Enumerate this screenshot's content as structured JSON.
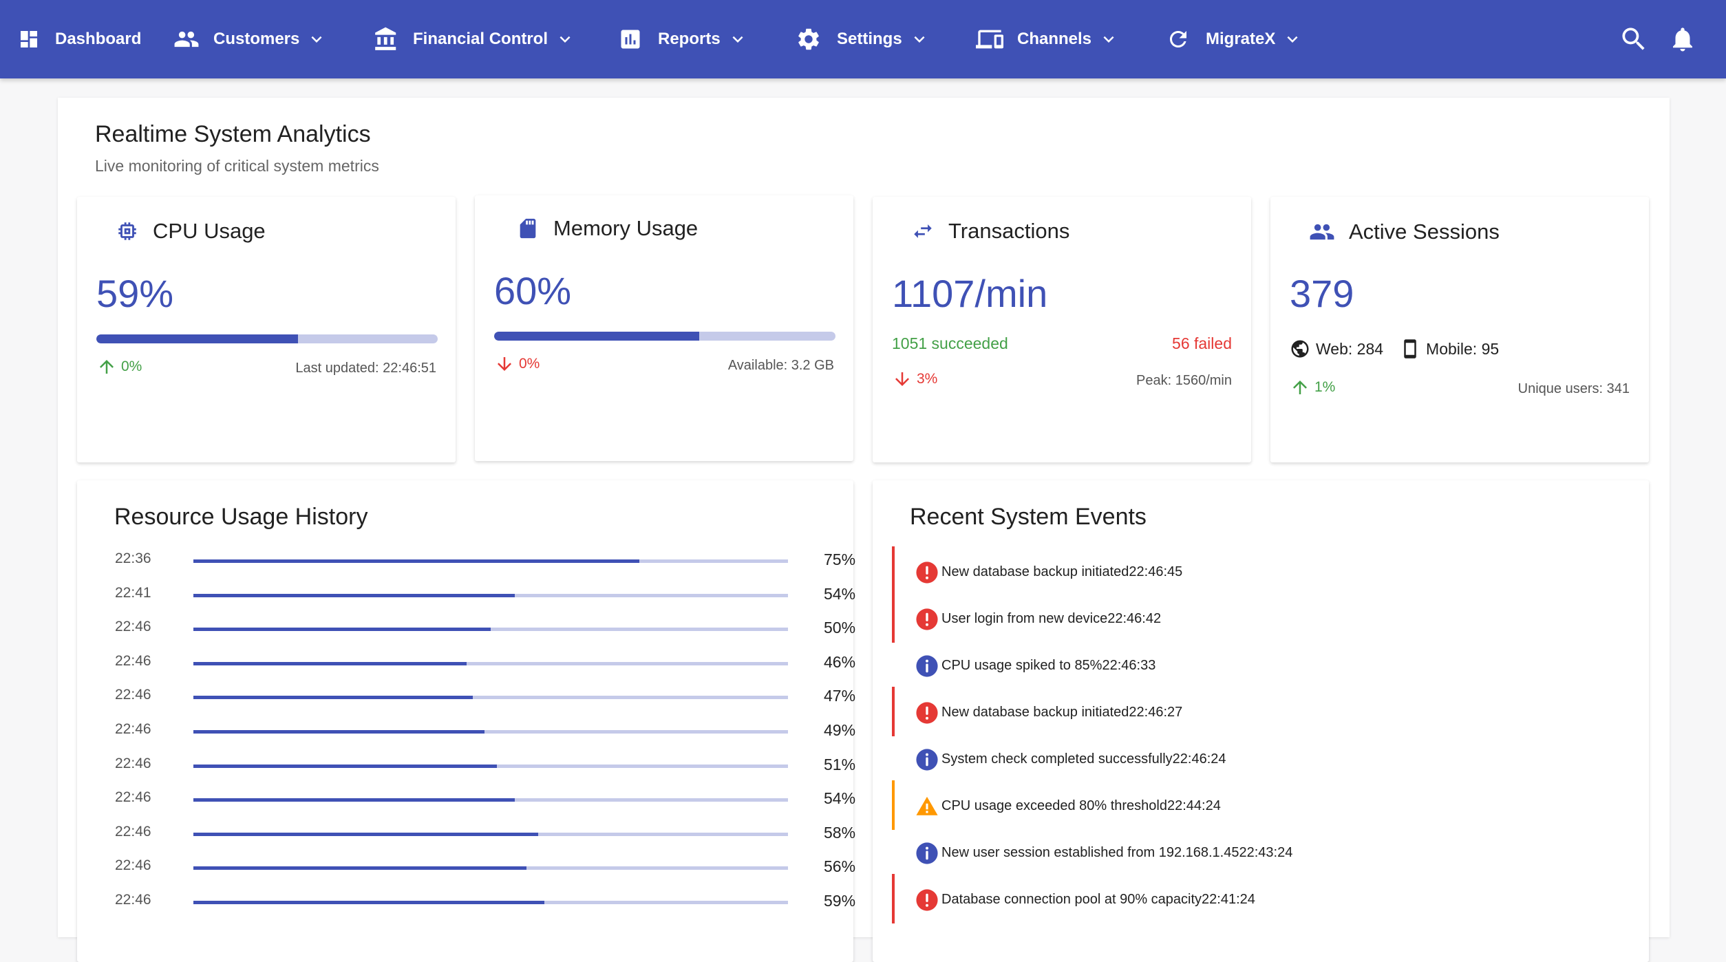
{
  "nav": {
    "dashboard": "Dashboard",
    "customers": "Customers",
    "financial": "Financial Control",
    "reports": "Reports",
    "settings": "Settings",
    "channels": "Channels",
    "migratex": "MigrateX"
  },
  "analytics": {
    "title": "Realtime System Analytics",
    "subtitle": "Live monitoring of critical system metrics"
  },
  "cpu": {
    "title": "CPU Usage",
    "value": "59%",
    "progress": 0.59,
    "trend": "0%",
    "meta": "Last updated: 22:46:51"
  },
  "memory": {
    "title": "Memory Usage",
    "value": "60%",
    "progress": 0.6,
    "trend": "0%",
    "meta": "Available: 3.2 GB"
  },
  "transactions": {
    "title": "Transactions",
    "value": "1107/min",
    "succeeded": "1051 succeeded",
    "failed": "56 failed",
    "trend": "3%",
    "meta": "Peak: 1560/min"
  },
  "sessions": {
    "title": "Active Sessions",
    "value": "379",
    "web": "Web: 284",
    "mobile": "Mobile: 95",
    "trend": "1%",
    "meta": "Unique users: 341"
  },
  "history": {
    "title": "Resource Usage History",
    "rows": [
      {
        "time": "22:36",
        "label": "75%",
        "value": 75
      },
      {
        "time": "22:41",
        "label": "54%",
        "value": 54
      },
      {
        "time": "22:46",
        "label": "50%",
        "value": 50
      },
      {
        "time": "22:46",
        "label": "46%",
        "value": 46
      },
      {
        "time": "22:46",
        "label": "47%",
        "value": 47
      },
      {
        "time": "22:46",
        "label": "49%",
        "value": 49
      },
      {
        "time": "22:46",
        "label": "51%",
        "value": 51
      },
      {
        "time": "22:46",
        "label": "54%",
        "value": 54
      },
      {
        "time": "22:46",
        "label": "58%",
        "value": 58
      },
      {
        "time": "22:46",
        "label": "56%",
        "value": 56
      },
      {
        "time": "22:46",
        "label": "59%",
        "value": 59
      }
    ]
  },
  "events": {
    "title": "Recent System Events",
    "items": [
      {
        "type": "error",
        "text": "New database backup initiated22:46:45"
      },
      {
        "type": "error",
        "text": "User login from new device22:46:42"
      },
      {
        "type": "info",
        "text": "CPU usage spiked to 85%22:46:33"
      },
      {
        "type": "error",
        "text": "New database backup initiated22:46:27"
      },
      {
        "type": "info",
        "text": "System check completed successfully22:46:24"
      },
      {
        "type": "warning",
        "text": "CPU usage exceeded 80% threshold22:44:24"
      },
      {
        "type": "info",
        "text": "New user session established from 192.168.1.4522:43:24"
      },
      {
        "type": "error",
        "text": "Database connection pool at 90% capacity22:41:24"
      }
    ]
  },
  "colors": {
    "primary": "#3f51b5",
    "error": "#e53935",
    "warning": "#ff9800",
    "success": "#43a047"
  }
}
